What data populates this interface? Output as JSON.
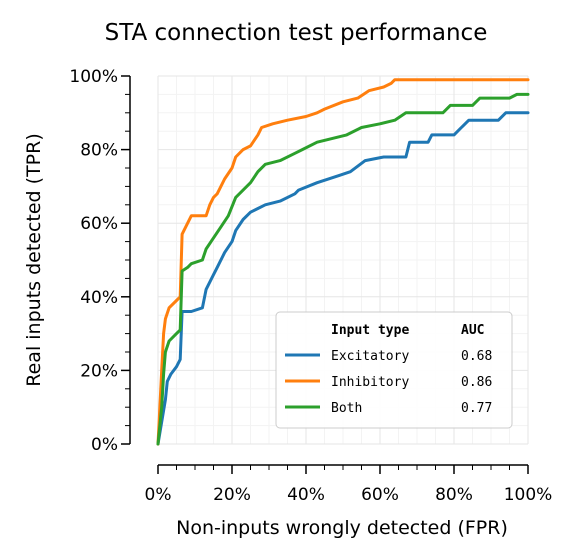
{
  "chart_data": {
    "type": "line",
    "title": "STA connection test performance",
    "xlabel": "Non-inputs wrongly detected (FPR)",
    "ylabel": "Real inputs detected (TPR)",
    "xlim": [
      0,
      1
    ],
    "ylim": [
      0,
      1
    ],
    "x_ticks": [
      "0%",
      "20%",
      "40%",
      "60%",
      "80%",
      "100%"
    ],
    "y_ticks": [
      "0%",
      "20%",
      "40%",
      "60%",
      "80%",
      "100%"
    ],
    "grid": true,
    "legend": {
      "placement": "lower-right",
      "header": [
        "Input type",
        "AUC"
      ]
    },
    "series": [
      {
        "name": "Excitatory",
        "auc": "0.68",
        "color": "#1f77b4",
        "points": [
          [
            0,
            0
          ],
          [
            0.01,
            0.06
          ],
          [
            0.02,
            0.12
          ],
          [
            0.025,
            0.17
          ],
          [
            0.035,
            0.19
          ],
          [
            0.05,
            0.21
          ],
          [
            0.06,
            0.23
          ],
          [
            0.065,
            0.36
          ],
          [
            0.09,
            0.36
          ],
          [
            0.12,
            0.37
          ],
          [
            0.13,
            0.42
          ],
          [
            0.15,
            0.46
          ],
          [
            0.16,
            0.48
          ],
          [
            0.18,
            0.52
          ],
          [
            0.2,
            0.55
          ],
          [
            0.21,
            0.58
          ],
          [
            0.23,
            0.61
          ],
          [
            0.25,
            0.63
          ],
          [
            0.27,
            0.64
          ],
          [
            0.29,
            0.65
          ],
          [
            0.33,
            0.66
          ],
          [
            0.37,
            0.68
          ],
          [
            0.38,
            0.69
          ],
          [
            0.43,
            0.71
          ],
          [
            0.49,
            0.73
          ],
          [
            0.52,
            0.74
          ],
          [
            0.56,
            0.77
          ],
          [
            0.61,
            0.78
          ],
          [
            0.67,
            0.78
          ],
          [
            0.68,
            0.82
          ],
          [
            0.73,
            0.82
          ],
          [
            0.74,
            0.84
          ],
          [
            0.8,
            0.84
          ],
          [
            0.82,
            0.86
          ],
          [
            0.84,
            0.88
          ],
          [
            0.92,
            0.88
          ],
          [
            0.94,
            0.9
          ],
          [
            1.0,
            0.9
          ]
        ]
      },
      {
        "name": "Inhibitory",
        "auc": "0.86",
        "color": "#ff7f0e",
        "points": [
          [
            0,
            0
          ],
          [
            0.01,
            0.2
          ],
          [
            0.015,
            0.3
          ],
          [
            0.02,
            0.34
          ],
          [
            0.03,
            0.37
          ],
          [
            0.05,
            0.39
          ],
          [
            0.06,
            0.4
          ],
          [
            0.065,
            0.57
          ],
          [
            0.08,
            0.6
          ],
          [
            0.09,
            0.62
          ],
          [
            0.13,
            0.62
          ],
          [
            0.14,
            0.65
          ],
          [
            0.15,
            0.67
          ],
          [
            0.16,
            0.68
          ],
          [
            0.18,
            0.72
          ],
          [
            0.2,
            0.75
          ],
          [
            0.21,
            0.78
          ],
          [
            0.23,
            0.8
          ],
          [
            0.25,
            0.81
          ],
          [
            0.27,
            0.84
          ],
          [
            0.28,
            0.86
          ],
          [
            0.31,
            0.87
          ],
          [
            0.35,
            0.88
          ],
          [
            0.4,
            0.89
          ],
          [
            0.43,
            0.9
          ],
          [
            0.45,
            0.91
          ],
          [
            0.5,
            0.93
          ],
          [
            0.54,
            0.94
          ],
          [
            0.57,
            0.96
          ],
          [
            0.61,
            0.97
          ],
          [
            0.63,
            0.98
          ],
          [
            0.64,
            0.99
          ],
          [
            1.0,
            0.99
          ]
        ]
      },
      {
        "name": "Both",
        "auc": "0.77",
        "color": "#2ca02c",
        "points": [
          [
            0,
            0
          ],
          [
            0.01,
            0.1
          ],
          [
            0.015,
            0.19
          ],
          [
            0.02,
            0.25
          ],
          [
            0.03,
            0.28
          ],
          [
            0.05,
            0.3
          ],
          [
            0.06,
            0.31
          ],
          [
            0.065,
            0.47
          ],
          [
            0.08,
            0.48
          ],
          [
            0.09,
            0.49
          ],
          [
            0.12,
            0.5
          ],
          [
            0.13,
            0.53
          ],
          [
            0.15,
            0.56
          ],
          [
            0.17,
            0.59
          ],
          [
            0.19,
            0.62
          ],
          [
            0.21,
            0.67
          ],
          [
            0.23,
            0.69
          ],
          [
            0.25,
            0.71
          ],
          [
            0.27,
            0.74
          ],
          [
            0.29,
            0.76
          ],
          [
            0.33,
            0.77
          ],
          [
            0.37,
            0.79
          ],
          [
            0.39,
            0.8
          ],
          [
            0.43,
            0.82
          ],
          [
            0.47,
            0.83
          ],
          [
            0.51,
            0.84
          ],
          [
            0.55,
            0.86
          ],
          [
            0.6,
            0.87
          ],
          [
            0.64,
            0.88
          ],
          [
            0.67,
            0.9
          ],
          [
            0.77,
            0.9
          ],
          [
            0.79,
            0.92
          ],
          [
            0.85,
            0.92
          ],
          [
            0.87,
            0.94
          ],
          [
            0.95,
            0.94
          ],
          [
            0.97,
            0.95
          ],
          [
            1.0,
            0.95
          ]
        ]
      }
    ]
  }
}
